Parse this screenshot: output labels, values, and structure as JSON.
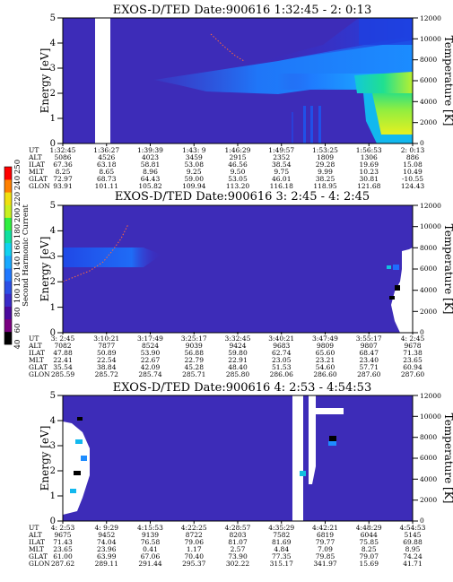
{
  "chart_data": [
    {
      "type": "heatmap",
      "title": "EXOS-D/TED   Date:900616  1:32:45 - 2: 0:13",
      "ylabel": "Energy [eV]",
      "y2label": "Temperature [K]",
      "ylim": [
        0,
        5
      ],
      "y2lim": [
        0,
        12000
      ],
      "yticks": [
        "0",
        "1",
        "2",
        "3",
        "4",
        "5"
      ],
      "y2ticks": [
        "0",
        "2000",
        "4000",
        "6000",
        "8000",
        "10000",
        "12000"
      ],
      "table_labels": [
        "UT",
        "ALT",
        "ILAT",
        "MLT",
        "GLAT",
        "GLON"
      ],
      "columns": [
        [
          "1:32:45",
          "5086",
          "67.36",
          "8.25",
          "72.97",
          "93.91"
        ],
        [
          "1:36:27",
          "4526",
          "63.18",
          "8.65",
          "68.73",
          "101.11"
        ],
        [
          "1:39:39",
          "4023",
          "58.81",
          "8.96",
          "64.43",
          "105.82"
        ],
        [
          "1:43: 9",
          "3459",
          "53.08",
          "9.25",
          "59.00",
          "109.94"
        ],
        [
          "1:46:29",
          "2915",
          "46.56",
          "9.50",
          "53.05",
          "113.20"
        ],
        [
          "1:49:57",
          "2352",
          "38.54",
          "9.75",
          "46.01",
          "116.18"
        ],
        [
          "1:53:25",
          "1809",
          "29.28",
          "9.99",
          "38.25",
          "118.95"
        ],
        [
          "1:56:53",
          "1306",
          "19.69",
          "10.23",
          "30.81",
          "121.68"
        ],
        [
          "2: 0:13",
          "886",
          "15.08",
          "10.49",
          "-10.55",
          "124.43"
        ]
      ]
    },
    {
      "type": "heatmap",
      "title": "EXOS-D/TED   Date:900616  3: 2:45 - 4: 2:45",
      "ylabel": "Energy [eV]",
      "y2label": "Temperature [K]",
      "ylim": [
        0,
        5
      ],
      "y2lim": [
        0,
        12000
      ],
      "yticks": [
        "0",
        "1",
        "2",
        "3",
        "4",
        "5"
      ],
      "y2ticks": [
        "0",
        "2000",
        "4000",
        "6000",
        "8000",
        "10000",
        "12000"
      ],
      "table_labels": [
        "UT",
        "ALT",
        "ILAT",
        "MLT",
        "GLAT",
        "GLON"
      ],
      "columns": [
        [
          "3: 2:45",
          "7082",
          "47.88",
          "22.41",
          "35.54",
          "285.59"
        ],
        [
          "3:10:21",
          "7877",
          "50.89",
          "22.54",
          "38.84",
          "285.72"
        ],
        [
          "3:17:49",
          "8524",
          "53.90",
          "22.67",
          "42.09",
          "285.74"
        ],
        [
          "3:25:17",
          "9039",
          "56.88",
          "22.79",
          "45.28",
          "285.71"
        ],
        [
          "3:32:45",
          "9424",
          "59.80",
          "22.91",
          "48.40",
          "285.80"
        ],
        [
          "3:40:21",
          "9683",
          "62.74",
          "23.05",
          "51.53",
          "286.06"
        ],
        [
          "3:47:49",
          "9809",
          "65.60",
          "23.21",
          "54.60",
          "286.60"
        ],
        [
          "3:55:17",
          "9807",
          "68.47",
          "23.40",
          "57.71",
          "287.60"
        ],
        [
          "4: 2:45",
          "9678",
          "71.38",
          "23.65",
          "60.94",
          "287.60"
        ]
      ]
    },
    {
      "type": "heatmap",
      "title": "EXOS-D/TED   Date:900616  4: 2:53 - 4:54:53",
      "ylabel": "Energy [eV]",
      "y2label": "Temperature [K]",
      "ylim": [
        0,
        5
      ],
      "y2lim": [
        0,
        12000
      ],
      "yticks": [
        "0",
        "1",
        "2",
        "3",
        "4",
        "5"
      ],
      "y2ticks": [
        "0",
        "2000",
        "4000",
        "6000",
        "8000",
        "10000",
        "12000"
      ],
      "table_labels": [
        "UT",
        "ALT",
        "ILAT",
        "MLT",
        "GLAT",
        "GLON"
      ],
      "columns": [
        [
          "4: 2:53",
          "9675",
          "71.43",
          "23.65",
          "61.00",
          "287.62"
        ],
        [
          "4: 9:29",
          "9452",
          "74.04",
          "23.96",
          "63.99",
          "289.11"
        ],
        [
          "4:15:53",
          "9139",
          "76.58",
          "0.41",
          "67.06",
          "291.44"
        ],
        [
          "4:22:25",
          "8722",
          "79.06",
          "1.17",
          "70.40",
          "295.37"
        ],
        [
          "4:28:57",
          "8203",
          "81.07",
          "2.57",
          "73.90",
          "302.22"
        ],
        [
          "4:35:29",
          "7582",
          "81.69",
          "4.84",
          "77.35",
          "315.17"
        ],
        [
          "4:42:21",
          "6819",
          "79.77",
          "7.09",
          "79.85",
          "341.97"
        ],
        [
          "4:48:29",
          "6044",
          "75.85",
          "8.25",
          "79.07",
          "15.69"
        ],
        [
          "4:54:53",
          "5145",
          "69.88",
          "8.95",
          "74.24",
          "41.71"
        ]
      ]
    }
  ],
  "colorbar": {
    "label": "Second Harmonic Current",
    "ticks": [
      "40",
      "60",
      "80",
      "100",
      "120",
      "140",
      "160",
      "180",
      "200",
      "220",
      "240",
      "250"
    ],
    "colors": [
      "#000000",
      "#7a0080",
      "#4b0a9e",
      "#3a2bc8",
      "#2c4fe6",
      "#1f78ff",
      "#18a8ff",
      "#12d2f0",
      "#10e0a0",
      "#30ef40",
      "#c8f020",
      "#f0e010",
      "#ff8000",
      "#ff0000"
    ]
  }
}
